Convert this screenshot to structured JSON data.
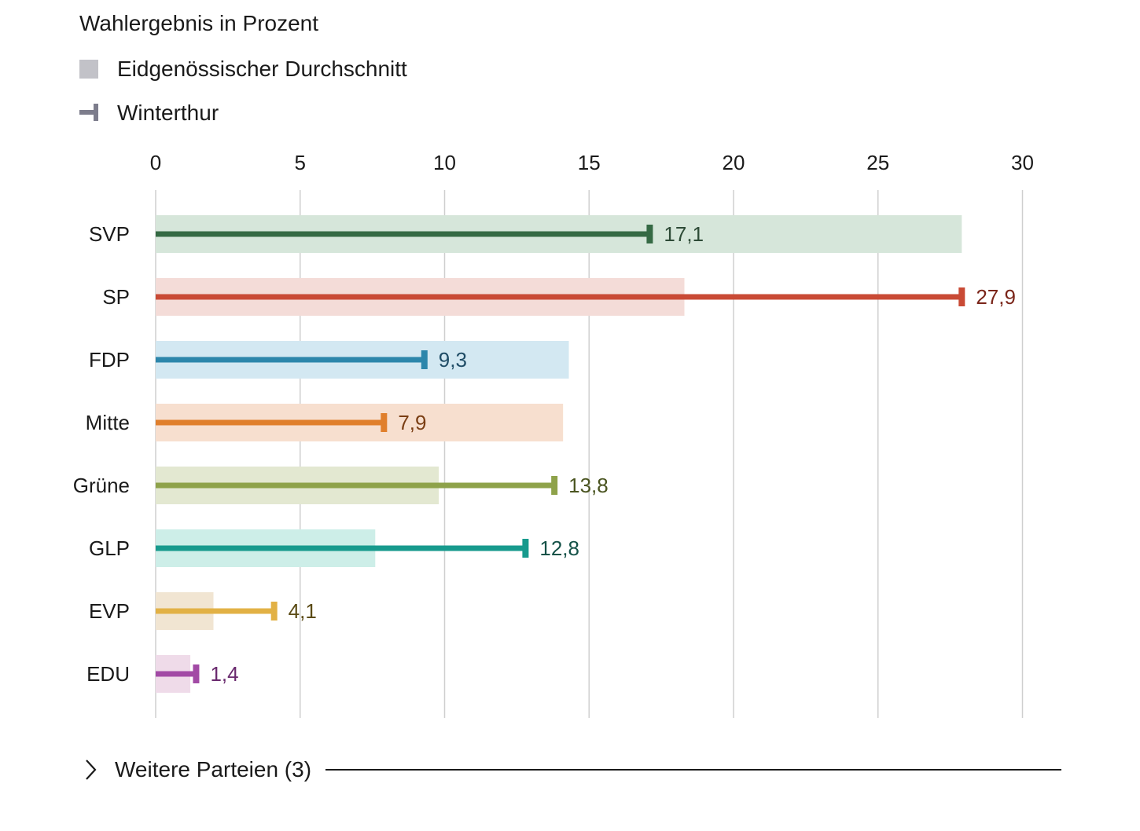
{
  "chart_data": {
    "type": "bar",
    "title": "Wahlergebnis in Prozent",
    "legend": {
      "national_label": "Eidgenössischer Durchschnitt",
      "local_label": "Winterthur"
    },
    "x_ticks": [
      "0",
      "5",
      "10",
      "15",
      "20",
      "25",
      "30"
    ],
    "xlim": [
      0,
      30
    ],
    "grid": true,
    "categories": [
      "SVP",
      "SP",
      "FDP",
      "Mitte",
      "Grüne",
      "GLP",
      "EVP",
      "EDU"
    ],
    "series": [
      {
        "name": "Eidgenössischer Durchschnitt",
        "values": [
          27.9,
          18.3,
          14.3,
          14.1,
          9.8,
          7.6,
          2.0,
          1.2
        ]
      },
      {
        "name": "Winterthur",
        "values": [
          17.1,
          27.9,
          9.3,
          7.9,
          13.8,
          12.8,
          4.1,
          1.4
        ]
      }
    ],
    "value_labels": [
      "17,1",
      "27,9",
      "9,3",
      "7,9",
      "13,8",
      "12,8",
      "4,1",
      "1,4"
    ],
    "colors": {
      "line": [
        "#356a44",
        "#c94a35",
        "#2c86ab",
        "#e07f2c",
        "#8ea24a",
        "#179a8d",
        "#e2b145",
        "#a24aa5"
      ],
      "bar": [
        "#d6e6da",
        "#f4dcd8",
        "#d3e8f2",
        "#f7dfcf",
        "#e3e8d1",
        "#cdeee8",
        "#f1e5d2",
        "#efdbe9"
      ],
      "label": [
        "#2d4a36",
        "#7a2519",
        "#1f4c66",
        "#7a3e14",
        "#4a5420",
        "#155248",
        "#5a4a14",
        "#6a2a6e"
      ]
    }
  },
  "legend_colors": {
    "national": "#c2c2c8",
    "local": "#7d7d8c"
  },
  "more_parties": {
    "label": "Weitere Parteien (3)"
  }
}
